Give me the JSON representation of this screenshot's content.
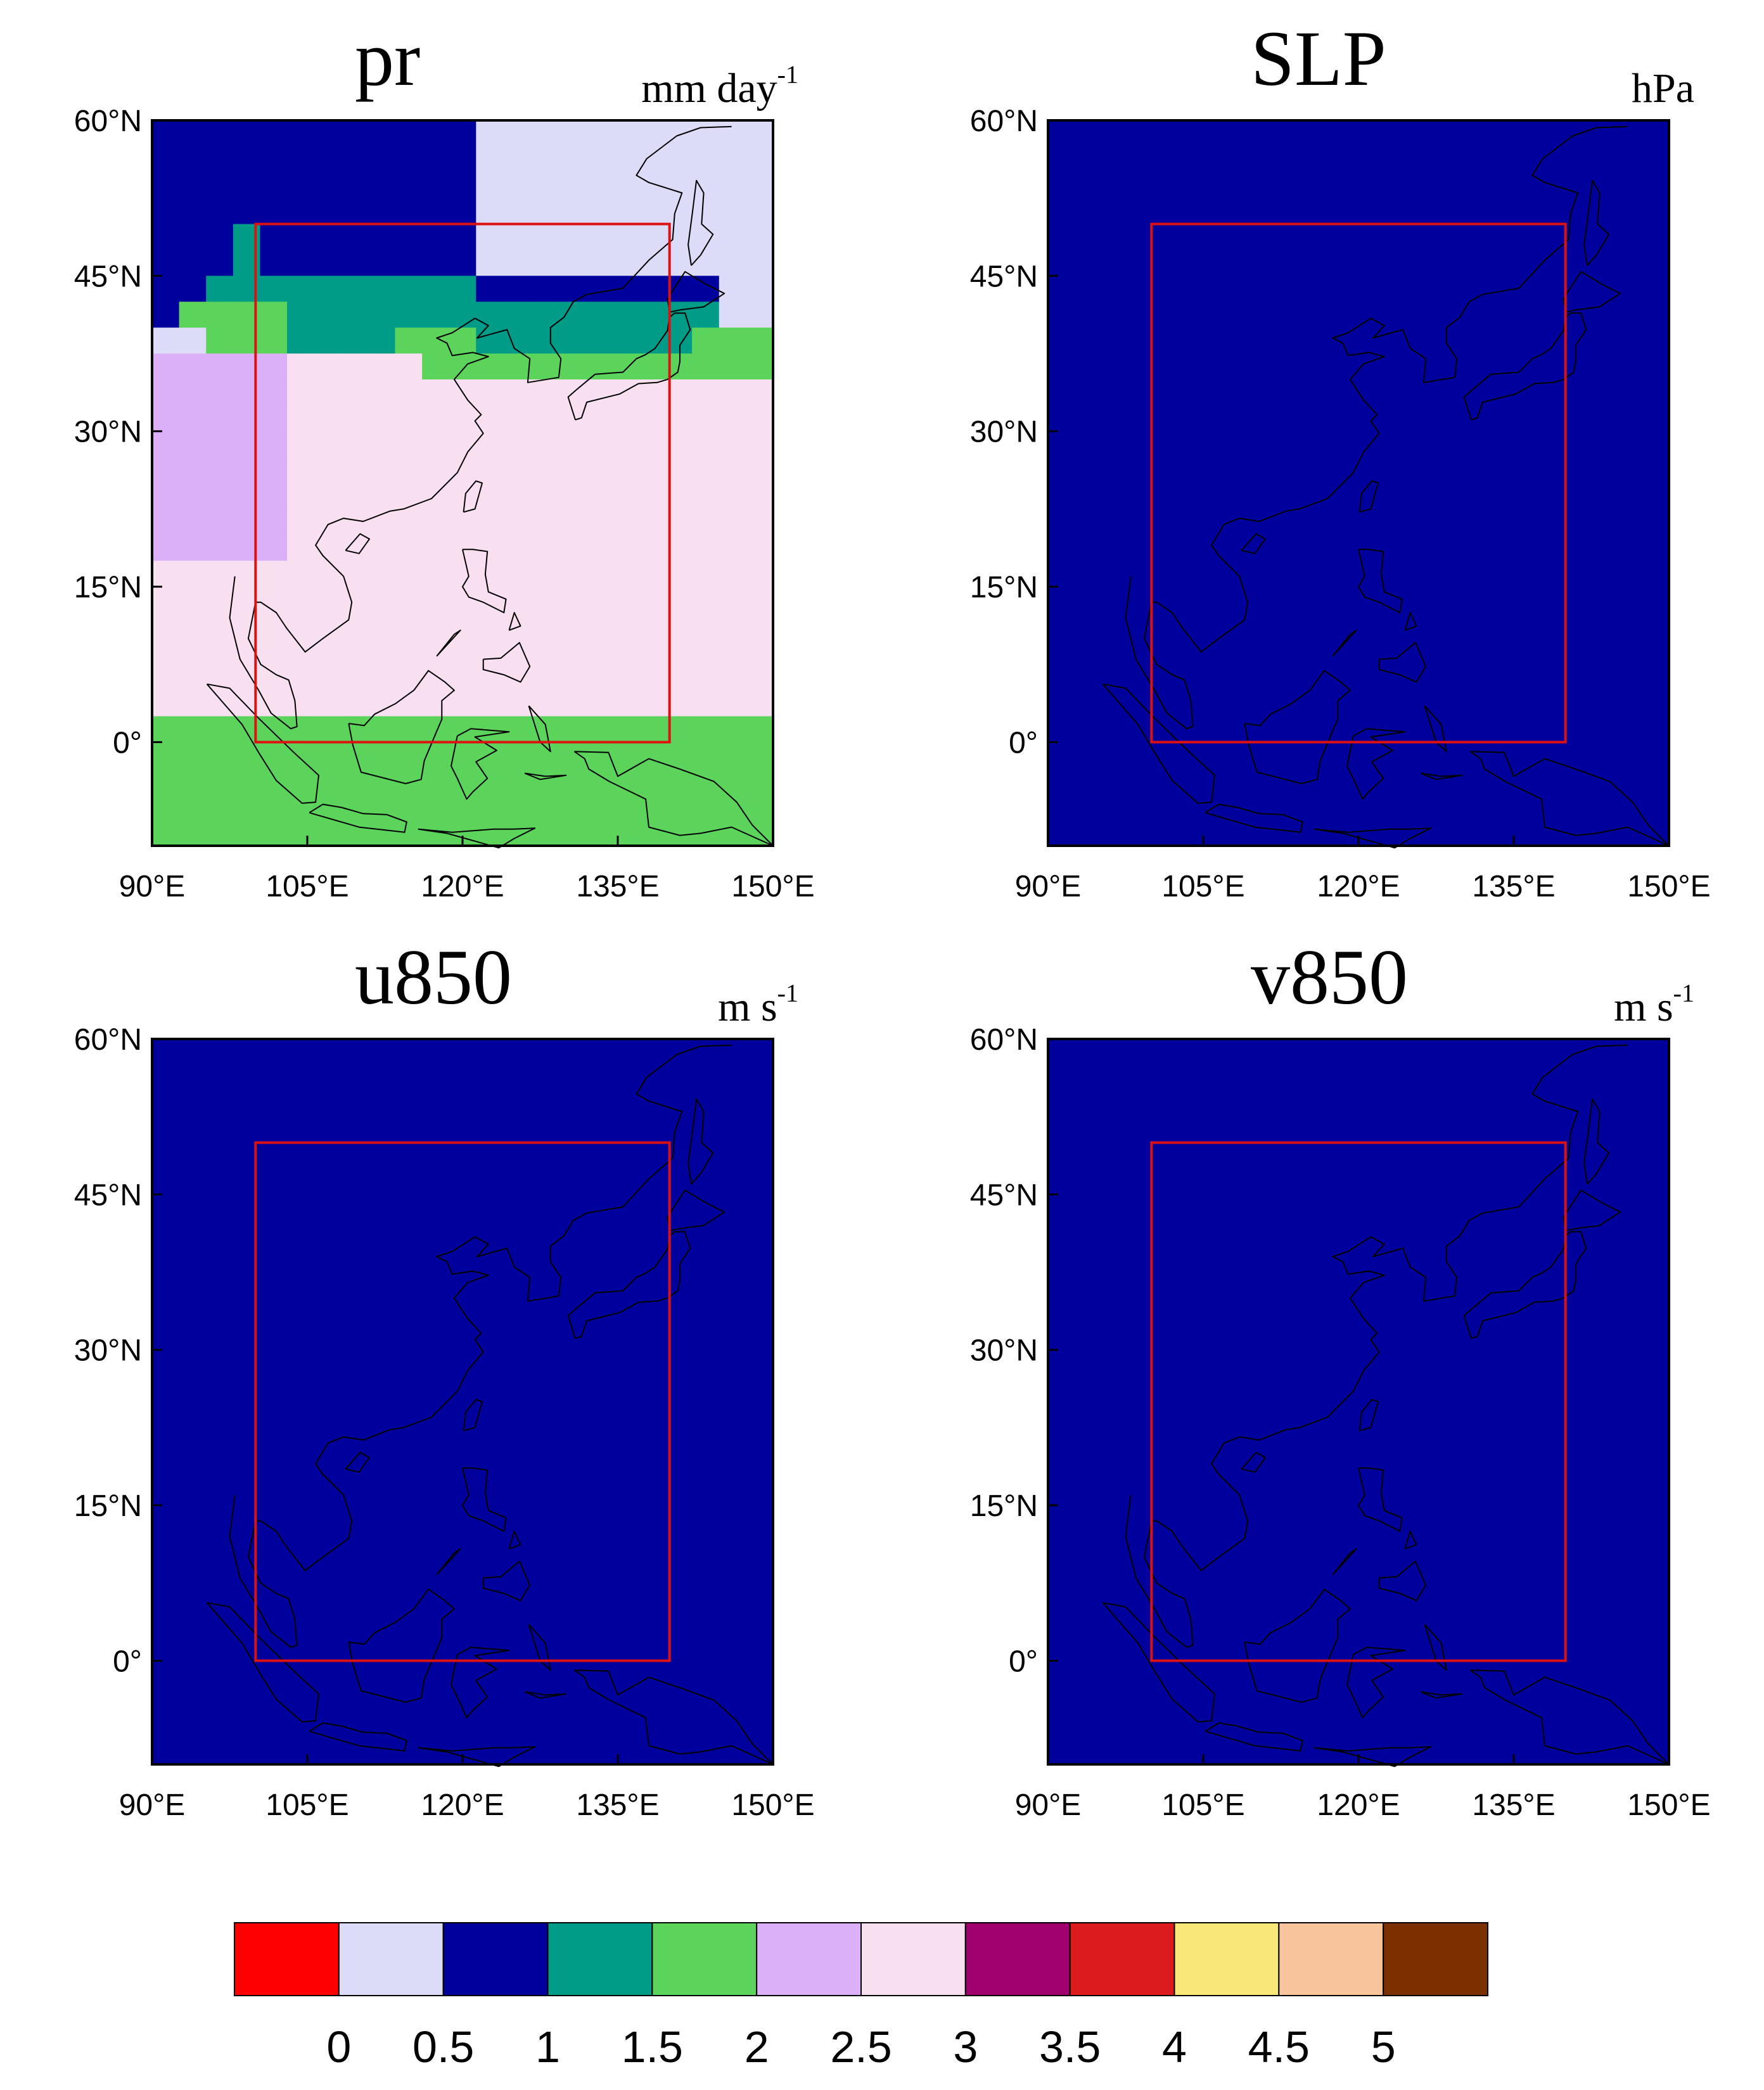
{
  "panels": [
    {
      "name": "pr",
      "unit": "mm day",
      "unit_sup": "-1"
    },
    {
      "name": "SLP",
      "unit": "hPa",
      "unit_sup": ""
    },
    {
      "name": "u850",
      "unit": "m s",
      "unit_sup": "-1"
    },
    {
      "name": "v850",
      "unit": "m s",
      "unit_sup": "-1"
    }
  ],
  "map": {
    "lon_range": [
      90,
      150
    ],
    "lat_range": [
      -10,
      60
    ],
    "lon_ticks": [
      "90°E",
      "105°E",
      "120°E",
      "135°E",
      "150°E"
    ],
    "lat_ticks": [
      "60°N",
      "45°N",
      "30°N",
      "15°N",
      "0°"
    ],
    "box": {
      "lon": [
        100,
        140
      ],
      "lat": [
        0,
        50
      ],
      "color": "#dd1111"
    }
  },
  "colorbar": {
    "colors": [
      "#ff0000",
      "#dcdcf8",
      "#00009c",
      "#009c88",
      "#5cd45c",
      "#dcb0f8",
      "#f8e0f0",
      "#a0006c",
      "#dc1c1c",
      "#f8e878",
      "#f8c49c",
      "#7c3000",
      "#000000"
    ],
    "labels": [
      "0",
      "0.5",
      "1",
      "1.5",
      "2",
      "2.5",
      "3",
      "3.5",
      "4",
      "4.5",
      "5"
    ]
  },
  "fields": [
    [
      "22222222222211111111111",
      "22222222222211111111111",
      "22222222222211111111111",
      "22222222222211111111111",
      "22232222222211111111111",
      "22232222222211111111111",
      "22333333333322222222211",
      "24444333333333333333311",
      "11444333344433333333444",
      "55555666664444444444444",
      "55555666666666666666666",
      "55555666666666666666666",
      "55555666666666666666666",
      "55555666666666666666666",
      "55555666666666666666666",
      "55555666666666666666666",
      "55555666666666666666666",
      "66666666666666666666666",
      "66666666666666666666666",
      "66666666666666666666666",
      "66666666666666666666666",
      "66666666666666666666666",
      "66666666666666666666666",
      "44444444444444444444444",
      "44444444444444444444444",
      "44444444444444444444444",
      "44444444444444444444444",
      "44444444444444444444444"
    ],
    [
      "22222222222222222222222",
      "22222222222222222222222",
      "22222222222222222222222",
      "22222222222222222222222",
      "22222222222222222222222",
      "22222222222222222222222",
      "22222222222222222222222",
      "22222222222222222222222",
      "22222222222222222222222",
      "22222222222222222222222",
      "22222222222222222222222",
      "22222222222222222222222",
      "22222222222222222222222",
      "22222222222222222222222",
      "22222222222222222222222",
      "22222222222222222222222",
      "22222222222222222222222",
      "22222222222222222222222",
      "22222222222222222222222",
      "22222222222222222222222",
      "22222222222222222222222",
      "22222222222222222222222",
      "22222222222222222222222",
      "22222222222222222222222",
      "22222222222222222222222",
      "22222222222222222222222",
      "22222222222222222222222",
      "22222222222222222222222"
    ],
    [
      "22222222222222222222222",
      "22222222222222222222222",
      "22222222222222222222222",
      "22222222222222222222222",
      "22222222222222222222222",
      "22222222222222222222222",
      "22222222222222222222222",
      "22222222222222222222222",
      "22222222222222222222222",
      "22222222222222222222222",
      "22222222222222222222222",
      "22222222222222222222222",
      "22222222222222222222222",
      "22222222222222222222222",
      "22222222222222222222222",
      "22222222222222222222222",
      "22222222222222222222222",
      "22222222222222222222222",
      "22222222222222222222222",
      "22222222222222222222222",
      "22222222222222222222222",
      "22222222222222222222222",
      "22222222222222222222222",
      "22222222222222222222222",
      "22222222222222222222222",
      "22222222222222222222222",
      "22222222222222222222222",
      "22222222222222222222222"
    ],
    [
      "22222222222222222222222",
      "22222222222222222222222",
      "22222222222222222222222",
      "22222222222222222222222",
      "22222222222222222222222",
      "22222222222222222222222",
      "22222222222222222222222",
      "22222222222222222222222",
      "22222222222222222222222",
      "22222222222222222222222",
      "22222222222222222222222",
      "22222222222222222222222",
      "22222222222222222222222",
      "22222222222222222222222",
      "22222222222222222222222",
      "22222222222222222222222",
      "22222222222222222222222",
      "22222222222222222222222",
      "22222222222222222222222",
      "22222222222222222222222",
      "22222222222222222222222",
      "22222222222222222222222",
      "22222222222222222222222",
      "22222222222222222222222",
      "22222222222222222222222",
      "22222222222222222222222",
      "22222222222222222222222",
      "22222222222222222222222"
    ]
  ]
}
